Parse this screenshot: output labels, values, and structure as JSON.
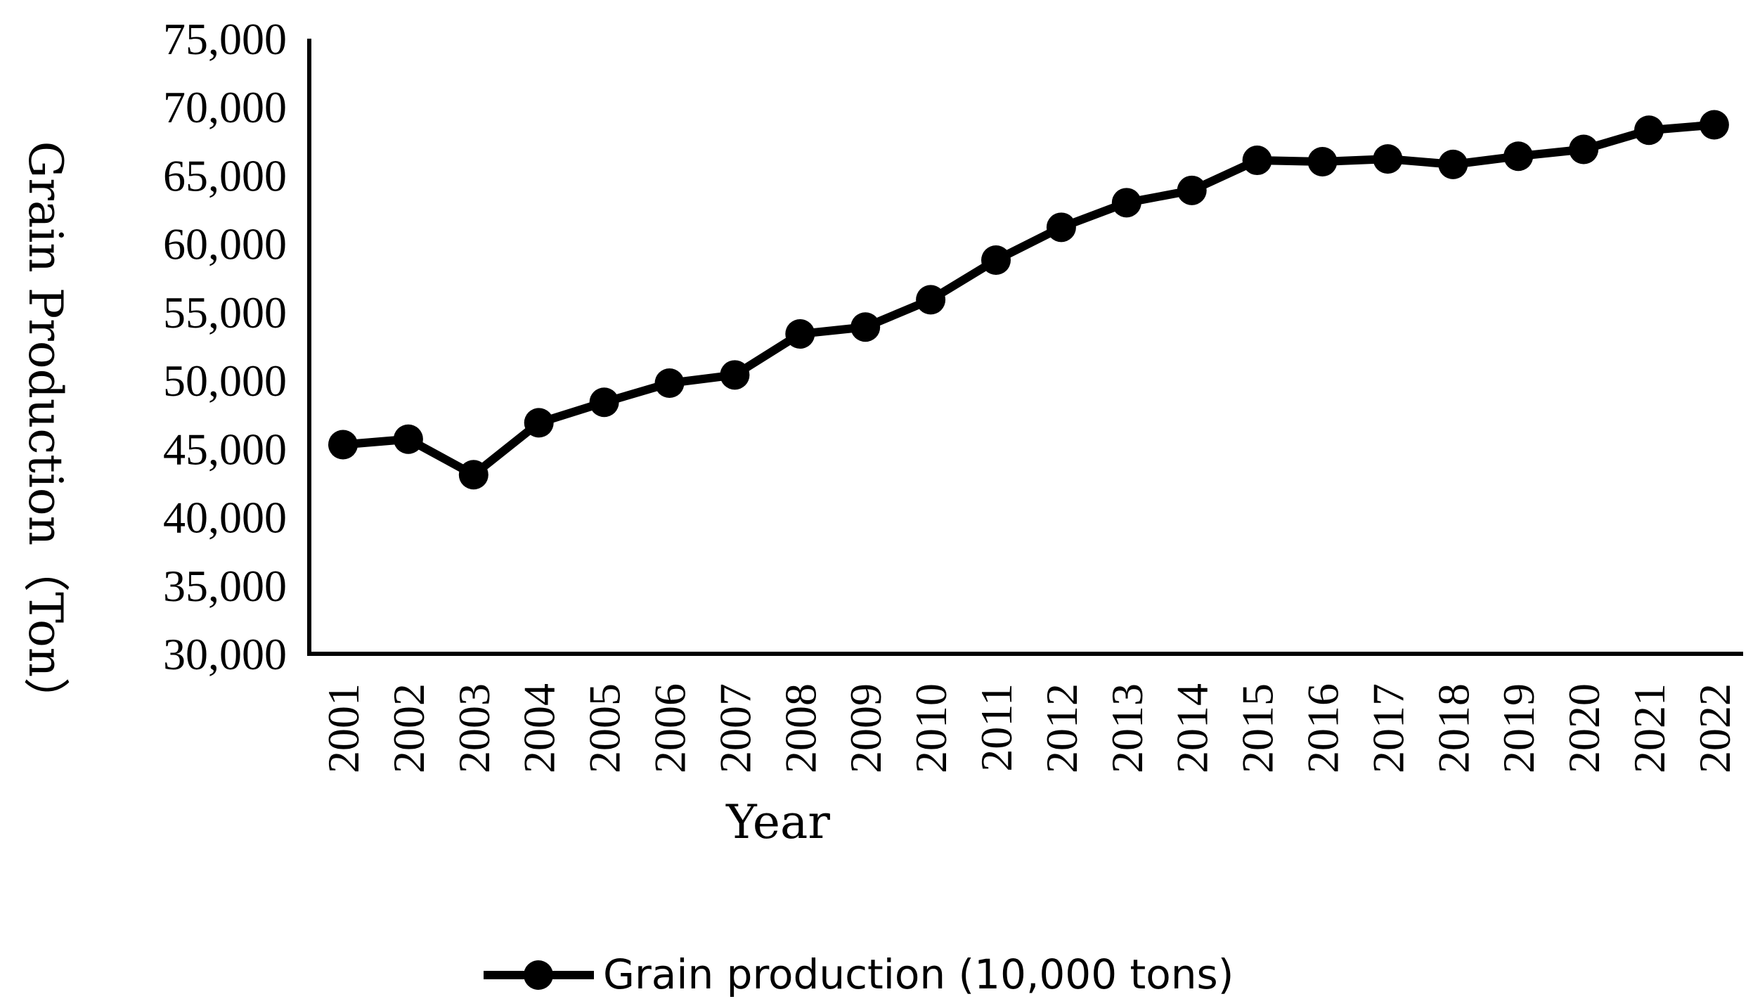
{
  "chart_data": {
    "type": "line",
    "title": "",
    "xlabel": "Year",
    "ylabel": "Grain Production（Ton）",
    "ylim": [
      30000,
      75000
    ],
    "yticks": [
      30000,
      35000,
      40000,
      45000,
      50000,
      55000,
      60000,
      65000,
      70000,
      75000
    ],
    "ytick_labels": [
      "30,000",
      "35,000",
      "40,000",
      "45,000",
      "50,000",
      "55,000",
      "60,000",
      "65,000",
      "70,000",
      "75,000"
    ],
    "categories": [
      "2001",
      "2002",
      "2003",
      "2004",
      "2005",
      "2006",
      "2007",
      "2008",
      "2009",
      "2010",
      "2011",
      "2012",
      "2013",
      "2014",
      "2015",
      "2016",
      "2017",
      "2018",
      "2019",
      "2020",
      "2021",
      "2022"
    ],
    "series": [
      {
        "name": "Grain production (10,000 tons)",
        "color": "#000000",
        "marker": "circle",
        "values": [
          45300,
          45700,
          43100,
          46900,
          48400,
          49800,
          50400,
          53400,
          53900,
          55900,
          58800,
          61200,
          63000,
          63900,
          66100,
          66000,
          66200,
          65800,
          66400,
          66900,
          68300,
          68700
        ]
      }
    ],
    "grid": false,
    "legend": "bottom-center"
  }
}
